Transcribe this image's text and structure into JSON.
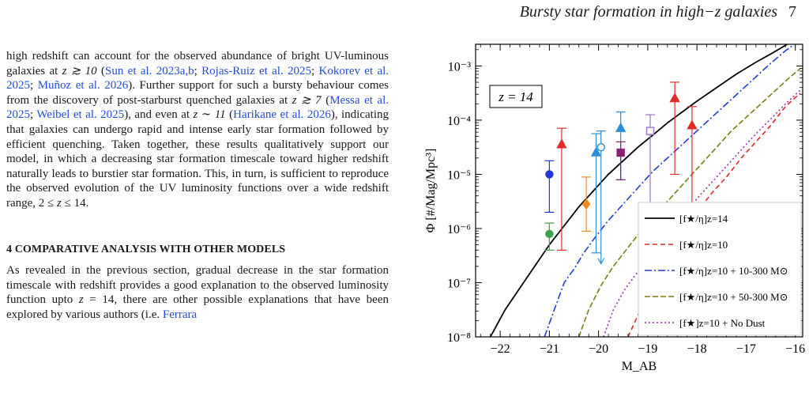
{
  "header": {
    "running_title": "Bursty star formation in high−z galaxies",
    "page_number": "7"
  },
  "body_text": {
    "p1": [
      {
        "t": "high redshift can account for the observed abundance of bright UV-luminous galaxies at "
      },
      {
        "t": "z ≳ 10",
        "i": true
      },
      {
        "t": " ("
      },
      {
        "t": "Sun et al. 2023a,b",
        "c": true
      },
      {
        "t": "; "
      },
      {
        "t": "Rojas-Ruiz et al. 2025",
        "c": true
      },
      {
        "t": "; "
      },
      {
        "t": "Kokorev et al. 2025",
        "c": true
      },
      {
        "t": "; "
      },
      {
        "t": "Muñoz et al. 2026",
        "c": true
      },
      {
        "t": "). Further support for such a bursty behaviour comes from the discovery of post-starburst quenched galaxies at "
      },
      {
        "t": "z ≳ 7",
        "i": true
      },
      {
        "t": " ("
      },
      {
        "t": "Messa et al. 2025",
        "c": true
      },
      {
        "t": "; "
      },
      {
        "t": "Weibel et al. 2025",
        "c": true
      },
      {
        "t": "), and even at "
      },
      {
        "t": "z ∼ 11",
        "i": true
      },
      {
        "t": " ("
      },
      {
        "t": "Harikane et al. 2026",
        "c": true
      },
      {
        "t": "), indicating that galaxies can undergo rapid and intense early star formation followed by efficient quenching. Taken together, these results qualitatively support our model, in which a decreasing star formation timescale toward higher redshift naturally leads to burstier star formation. This, in turn, is sufficient to reproduce the observed evolution of the UV luminosity functions over a wide redshift range, 2 ≤ "
      },
      {
        "t": "z",
        "i": true
      },
      {
        "t": " ≤ 14."
      }
    ],
    "section_heading": "4 COMPARATIVE ANALYSIS WITH OTHER MODELS",
    "p2": [
      {
        "t": "As revealed in the previous section, gradual decrease in the star formation timescale with redshift provides a good explanation to the observed luminosity function upto "
      },
      {
        "t": "z",
        "i": true
      },
      {
        "t": " = 14, there are other possible explanations that have been explored by various authors (i.e. "
      },
      {
        "t": "Ferrara",
        "c": true
      }
    ]
  },
  "chart_data": {
    "type": "line",
    "xlabel": "M_AB",
    "ylabel": "Φ [#/Mag/Mpc³]",
    "xlim": [
      -22.5,
      -15.85
    ],
    "ylim_log10": [
      -8.0,
      -2.6
    ],
    "y_scale": "log",
    "x_ticks": [
      -22,
      -21,
      -20,
      -19,
      -18,
      -17,
      -16
    ],
    "y_ticks": [
      "10⁻³",
      "10⁻⁴",
      "10⁻⁵",
      "10⁻⁶",
      "10⁻⁷",
      "10⁻⁸"
    ],
    "annotation": "z = 14",
    "legend_position": "bottom-right",
    "series": [
      {
        "name": "[f★/η]z=14",
        "color": "#000000",
        "dash": "",
        "width": 1.8,
        "points": [
          [
            -22.2,
            -8.0
          ],
          [
            -21.9,
            -7.5
          ],
          [
            -21.6,
            -7.1
          ],
          [
            -21.3,
            -6.7
          ],
          [
            -21.0,
            -6.3
          ],
          [
            -20.7,
            -5.95
          ],
          [
            -20.4,
            -5.6
          ],
          [
            -20.1,
            -5.3
          ],
          [
            -19.8,
            -5.0
          ],
          [
            -19.5,
            -4.75
          ],
          [
            -19.2,
            -4.5
          ],
          [
            -18.9,
            -4.28
          ],
          [
            -18.6,
            -4.05
          ],
          [
            -18.3,
            -3.85
          ],
          [
            -18.0,
            -3.65
          ],
          [
            -17.6,
            -3.4
          ],
          [
            -17.2,
            -3.15
          ],
          [
            -16.8,
            -2.93
          ],
          [
            -16.5,
            -2.78
          ],
          [
            -16.2,
            -2.62
          ],
          [
            -16.1,
            -2.56
          ]
        ]
      },
      {
        "name": "[f★/η]z=10",
        "color": "#e3262a",
        "dash": "6,4",
        "width": 1.6,
        "points": [
          [
            -19.4,
            -8.0
          ],
          [
            -19.2,
            -7.6
          ],
          [
            -19.0,
            -7.1
          ],
          [
            -18.8,
            -6.7
          ],
          [
            -18.6,
            -6.4
          ],
          [
            -18.3,
            -6.0
          ],
          [
            -18.0,
            -5.7
          ],
          [
            -17.7,
            -5.35
          ],
          [
            -17.4,
            -5.05
          ],
          [
            -17.1,
            -4.7
          ],
          [
            -16.8,
            -4.4
          ],
          [
            -16.5,
            -4.1
          ],
          [
            -16.2,
            -3.75
          ],
          [
            -15.9,
            -3.5
          ]
        ]
      },
      {
        "name": "[f★/η]z=10 + 10-300 M⊙",
        "color": "#1f3fd6",
        "dash": "9,3,2,3",
        "width": 1.6,
        "points": [
          [
            -21.1,
            -8.0
          ],
          [
            -20.9,
            -7.5
          ],
          [
            -20.7,
            -7.0
          ],
          [
            -20.5,
            -6.75
          ],
          [
            -20.3,
            -6.45
          ],
          [
            -20.1,
            -6.2
          ],
          [
            -19.8,
            -5.85
          ],
          [
            -19.5,
            -5.55
          ],
          [
            -19.2,
            -5.25
          ],
          [
            -18.9,
            -4.95
          ],
          [
            -18.6,
            -4.7
          ],
          [
            -18.3,
            -4.45
          ],
          [
            -18.0,
            -4.2
          ],
          [
            -17.7,
            -3.95
          ],
          [
            -17.4,
            -3.7
          ],
          [
            -17.1,
            -3.45
          ],
          [
            -16.8,
            -3.2
          ],
          [
            -16.5,
            -2.95
          ],
          [
            -16.2,
            -2.72
          ],
          [
            -16.05,
            -2.62
          ]
        ]
      },
      {
        "name": "[f★/η]z=10 + 50-300 M⊙",
        "color": "#7f7a12",
        "dash": "7,3",
        "width": 1.6,
        "points": [
          [
            -20.4,
            -8.0
          ],
          [
            -20.2,
            -7.5
          ],
          [
            -19.95,
            -7.05
          ],
          [
            -19.7,
            -6.7
          ],
          [
            -19.4,
            -6.35
          ],
          [
            -19.1,
            -6.0
          ],
          [
            -18.8,
            -5.7
          ],
          [
            -18.5,
            -5.4
          ],
          [
            -18.2,
            -5.1
          ],
          [
            -17.9,
            -4.8
          ],
          [
            -17.6,
            -4.5
          ],
          [
            -17.3,
            -4.2
          ],
          [
            -17.0,
            -3.95
          ],
          [
            -16.7,
            -3.7
          ],
          [
            -16.4,
            -3.45
          ],
          [
            -16.1,
            -3.2
          ],
          [
            -15.9,
            -3.05
          ]
        ]
      },
      {
        "name": "[f★]z=10 + No Dust",
        "color": "#9b2fb4",
        "dash": "2,3",
        "width": 1.6,
        "points": [
          [
            -19.9,
            -8.0
          ],
          [
            -19.7,
            -7.5
          ],
          [
            -19.45,
            -7.1
          ],
          [
            -19.2,
            -6.8
          ],
          [
            -18.9,
            -6.4
          ],
          [
            -18.6,
            -6.05
          ],
          [
            -18.3,
            -5.75
          ],
          [
            -18.0,
            -5.45
          ],
          [
            -17.7,
            -5.15
          ],
          [
            -17.4,
            -4.85
          ],
          [
            -17.1,
            -4.55
          ],
          [
            -16.8,
            -4.25
          ],
          [
            -16.5,
            -3.98
          ],
          [
            -16.2,
            -3.7
          ],
          [
            -15.9,
            -3.45
          ]
        ]
      }
    ],
    "data_points": [
      {
        "x": -21.0,
        "y": -6.1,
        "lo": -6.4,
        "hi": -5.9,
        "marker": "circle",
        "fill": true,
        "color": "#3aa64a"
      },
      {
        "x": -21.0,
        "y": -5.0,
        "lo": -5.7,
        "hi": -4.75,
        "marker": "circle",
        "fill": true,
        "color": "#2136d6"
      },
      {
        "x": -20.75,
        "y": -4.45,
        "lo": -6.4,
        "hi": -4.15,
        "marker": "triangle",
        "fill": true,
        "color": "#e22b2b"
      },
      {
        "x": -20.25,
        "y": -5.55,
        "lo": -6.05,
        "hi": -5.05,
        "marker": "diamond",
        "fill": true,
        "color": "#f08a24"
      },
      {
        "x": -20.05,
        "y": -4.6,
        "lo": -6.45,
        "hi": -4.25,
        "marker": "triangle",
        "fill": true,
        "color": "#2a8fd8"
      },
      {
        "x": -19.95,
        "y": -4.5,
        "lo": -6.5,
        "hi": -4.2,
        "marker": "circle",
        "fill": false,
        "color": "#2a8fd8",
        "arrow": true,
        "arrow_to": -6.65
      },
      {
        "x": -19.55,
        "y": -4.15,
        "lo": -5.1,
        "hi": -3.85,
        "marker": "triangle",
        "fill": true,
        "color": "#2a8fd8"
      },
      {
        "x": -19.55,
        "y": -4.6,
        "lo": -5.1,
        "hi": -4.4,
        "marker": "square",
        "fill": true,
        "color": "#8a1f74"
      },
      {
        "x": -18.95,
        "y": -4.2,
        "lo": -6.3,
        "hi": -3.9,
        "marker": "square",
        "fill": false,
        "color": "#9f6ed6",
        "arrow": true,
        "arrow_to": -6.5
      },
      {
        "x": -18.45,
        "y": -3.6,
        "lo": -5.0,
        "hi": -3.3,
        "marker": "triangle",
        "fill": true,
        "color": "#e22b2b"
      },
      {
        "x": -18.1,
        "y": -4.1,
        "lo": -5.6,
        "hi": -3.75,
        "marker": "triangle",
        "fill": true,
        "color": "#e22b2b"
      }
    ]
  }
}
